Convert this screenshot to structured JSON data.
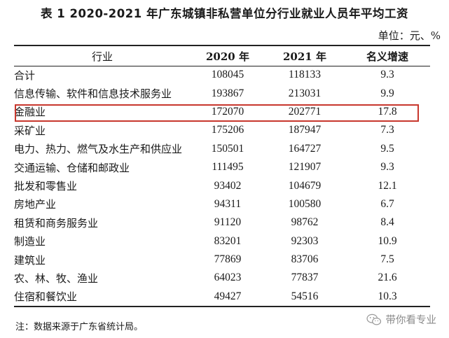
{
  "title": "表 1  2020-2021 年广东城镇非私营单位分行业就业人员年平均工资",
  "unit": "单位：元、%",
  "table": {
    "headers": [
      "行业",
      "2020 年",
      "2021 年",
      "名义增速"
    ],
    "rows": [
      {
        "industry": "合计",
        "y2020": "108045",
        "y2021": "118133",
        "growth": "9.3"
      },
      {
        "industry": "信息传输、软件和信息技术服务业",
        "y2020": "193867",
        "y2021": "213031",
        "growth": "9.9"
      },
      {
        "industry": "金融业",
        "y2020": "172070",
        "y2021": "202771",
        "growth": "17.8"
      },
      {
        "industry": "采矿业",
        "y2020": "175206",
        "y2021": "187947",
        "growth": "7.3"
      },
      {
        "industry": "电力、热力、燃气及水生产和供应业",
        "y2020": "150501",
        "y2021": "164727",
        "growth": "9.5"
      },
      {
        "industry": "交通运输、仓储和邮政业",
        "y2020": "111495",
        "y2021": "121907",
        "growth": "9.3"
      },
      {
        "industry": "批发和零售业",
        "y2020": "93402",
        "y2021": "104679",
        "growth": "12.1"
      },
      {
        "industry": "房地产业",
        "y2020": "94311",
        "y2021": "100580",
        "growth": "6.7"
      },
      {
        "industry": "租赁和商务服务业",
        "y2020": "91120",
        "y2021": "98762",
        "growth": "8.4"
      },
      {
        "industry": "制造业",
        "y2020": "83201",
        "y2021": "92303",
        "growth": "10.9"
      },
      {
        "industry": "建筑业",
        "y2020": "77869",
        "y2021": "83706",
        "growth": "7.5"
      },
      {
        "industry": "农、林、牧、渔业",
        "y2020": "64023",
        "y2021": "77837",
        "growth": "21.6"
      },
      {
        "industry": "住宿和餐饮业",
        "y2020": "49427",
        "y2021": "54516",
        "growth": "10.3"
      }
    ],
    "highlight_color": "#c8372d"
  },
  "note": "注：数据来源于广东省统计局。",
  "watermark": {
    "icon": "wechat-icon",
    "text": "带你看专业"
  }
}
